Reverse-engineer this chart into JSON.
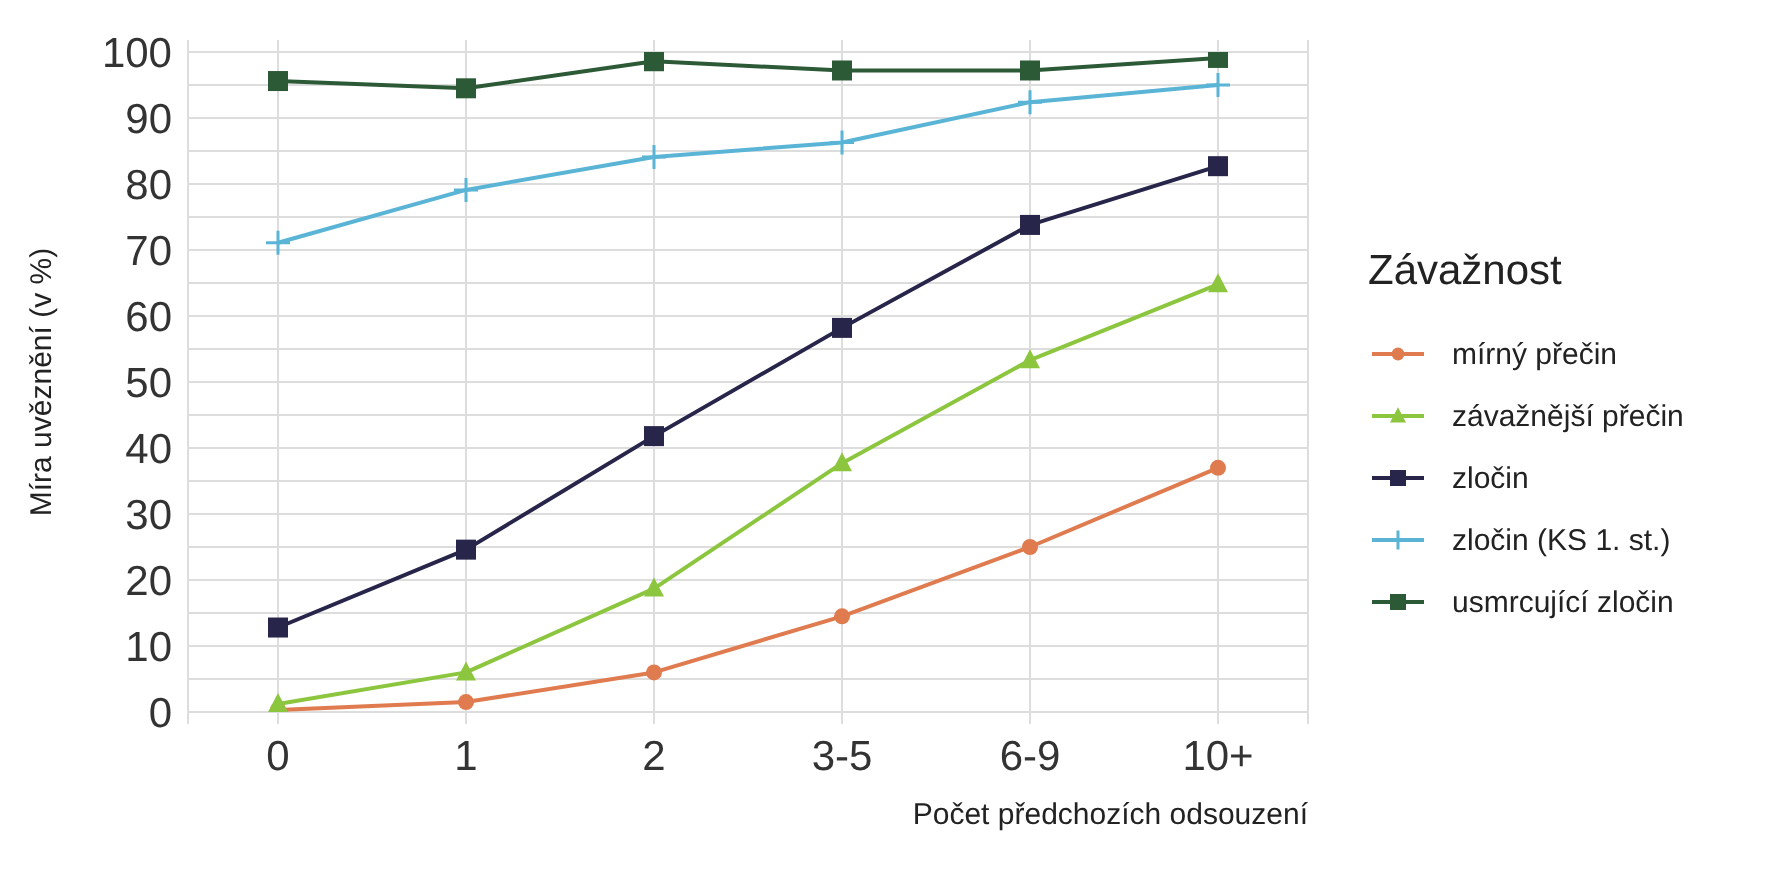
{
  "chart_data": {
    "type": "line",
    "xlabel": "Počet předchozích odsouzení",
    "ylabel": "Míra uvěznění (v %)",
    "legend_title": "Závažnost",
    "categories": [
      "0",
      "1",
      "2",
      "3-5",
      "6-9",
      "10+"
    ],
    "series": [
      {
        "name": "mírný přečin",
        "color": "#e07b4f",
        "marker": "circle",
        "values": [
          0.3,
          1.5,
          6,
          14.5,
          25,
          37
        ]
      },
      {
        "name": "závažnější přečin",
        "color": "#8cc63f",
        "marker": "triangle",
        "values": [
          1.2,
          6,
          18.7,
          37.7,
          53.3,
          64.8
        ]
      },
      {
        "name": "zločin",
        "color": "#27254a",
        "marker": "square",
        "values": [
          12.8,
          24.6,
          41.8,
          58.2,
          73.8,
          82.7
        ]
      },
      {
        "name": "zločin (KS 1. st.)",
        "color": "#5ab4d6",
        "marker": "cross",
        "values": [
          71.1,
          79.1,
          84.1,
          86.3,
          92.4,
          95
        ]
      },
      {
        "name": "usmrcující zločin",
        "color": "#2d5a36",
        "marker": "square",
        "values": [
          95.6,
          94.5,
          98.6,
          97.2,
          97.2,
          99.1
        ]
      }
    ],
    "ylim": [
      0,
      100
    ],
    "yticks": [
      0,
      {
        "value": 5,
        "label": null
      },
      10,
      {
        "value": 15,
        "label": null
      },
      20,
      {
        "value": 25,
        "label": null
      },
      30,
      {
        "value": 35,
        "label": null
      },
      40,
      {
        "value": 45,
        "label": null
      },
      50,
      {
        "value": 55,
        "label": null
      },
      60,
      {
        "value": 65,
        "label": null
      },
      70,
      {
        "value": 75,
        "label": null
      },
      80,
      {
        "value": 85,
        "label": null
      },
      90,
      {
        "value": 95,
        "label": null
      },
      100
    ],
    "grid": true,
    "legend": "right",
    "line_style": "solid"
  }
}
